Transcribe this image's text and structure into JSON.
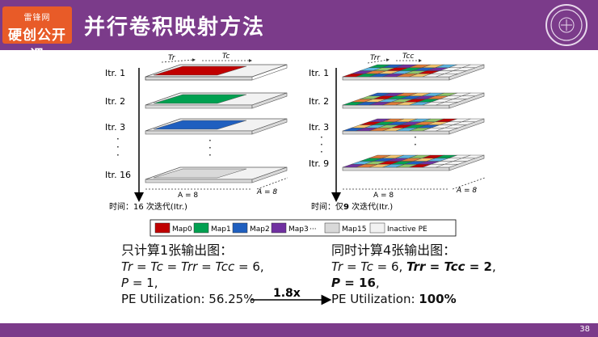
{
  "header": {
    "logo_line1": "雷锋网",
    "logo_line2": "硬创公开课",
    "title": "并行卷积映射方法"
  },
  "left_diagram": {
    "iterations": [
      "Itr. 1",
      "Itr. 2",
      "Itr. 3",
      "Itr. 16"
    ],
    "dim_tr": "Tr",
    "dim_tc": "Tc",
    "dim_a_bottom": "A = 8",
    "dim_a_side": "A = 8",
    "time_label": "时间：16 次迭代(Itr.)",
    "dots": "·"
  },
  "right_diagram": {
    "iterations": [
      "Itr. 1",
      "Itr. 2",
      "Itr. 3",
      "Itr. 9"
    ],
    "dim_trr": "Trr",
    "dim_tcc": "Tcc",
    "dim_a_bottom": "A = 8",
    "dim_a_side": "A = 8",
    "time_prefix": "时间：仅",
    "time_num": "9",
    "time_suffix": " 次迭代(Itr.)",
    "dots": "·"
  },
  "legend": {
    "items": [
      {
        "label": "Map0",
        "color": "#c00000"
      },
      {
        "label": "Map1",
        "color": "#00a050"
      },
      {
        "label": "Map2",
        "color": "#1f5fbf"
      },
      {
        "label": "Map3",
        "color": "#7030a0"
      },
      {
        "label": "···",
        "color": ""
      },
      {
        "label": "Map15",
        "color": "#d9d9d9"
      },
      {
        "label": "Inactive PE",
        "color": "#f2f2f2"
      }
    ]
  },
  "left_text": {
    "heading": "只计算1张输出图：",
    "line1_a": "Tr",
    "line1_b": " = ",
    "line1_c": "Tc",
    "line1_d": " = ",
    "line1_e": "Trr",
    "line1_f": " = ",
    "line1_g": "Tcc",
    "line1_h": " = 6,",
    "line2_a": "P",
    "line2_b": " = 1,",
    "line3": "PE Utilization: 56.25%"
  },
  "right_text": {
    "heading": "同时计算4张输出图：",
    "line1_a": "Tr",
    "line1_b": " = ",
    "line1_c": "Tc",
    "line1_d": " = 6, ",
    "line1_e": "Trr",
    "line1_f": " = ",
    "line1_g": "Tcc",
    "line1_h": " = 2",
    "line1_i": ",",
    "line2_a": "P",
    "line2_b": " = 16",
    "line2_c": ",",
    "line3_a": "PE Utilization: ",
    "line3_b": "100%"
  },
  "speedup": "1.8x",
  "page_number": "38",
  "colors": {
    "header": "#7b3b8a",
    "logo": "#e85b28"
  }
}
